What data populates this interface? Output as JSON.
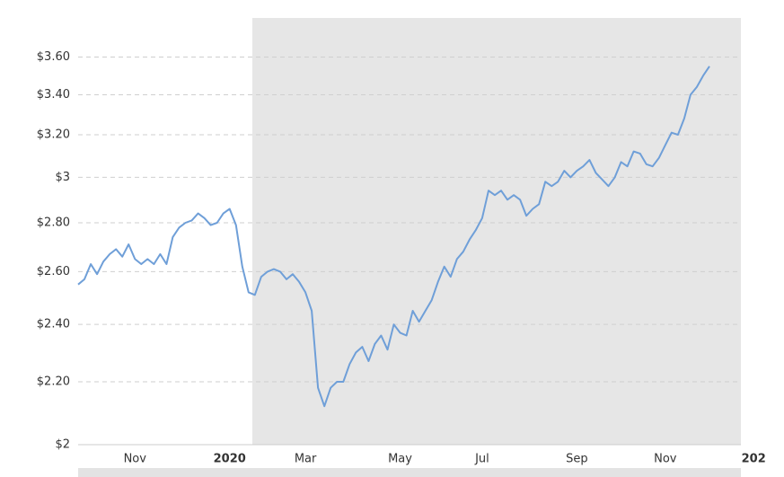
{
  "chart_data": {
    "type": "line",
    "log_scale": true,
    "grid": true,
    "categories": [
      null,
      null,
      null,
      null,
      null,
      null,
      null,
      null,
      null,
      "Nov",
      null,
      null,
      null,
      null,
      null,
      null,
      null,
      null,
      null,
      null,
      null,
      null,
      null,
      null,
      "2020",
      null,
      null,
      null,
      null,
      null,
      null,
      null,
      null,
      null,
      null,
      null,
      "Mar",
      null,
      null,
      null,
      null,
      null,
      null,
      null,
      null,
      null,
      null,
      null,
      null,
      null,
      null,
      "May",
      null,
      null,
      null,
      null,
      null,
      null,
      null,
      null,
      null,
      null,
      null,
      null,
      "Jul",
      null,
      null,
      null,
      null,
      null,
      null,
      null,
      null,
      null,
      null,
      null,
      null,
      null,
      null,
      "Sep",
      null,
      null,
      null,
      null,
      null,
      null,
      null,
      null,
      null,
      null,
      null,
      null,
      null,
      "Nov",
      null,
      null,
      null,
      null,
      null,
      null,
      null,
      null,
      null,
      null,
      null,
      null,
      null,
      "202"
    ],
    "series": [
      {
        "color": "#6f9fd8",
        "values": [
          2.55,
          2.57,
          2.63,
          2.59,
          2.64,
          2.67,
          2.69,
          2.66,
          2.71,
          2.65,
          2.63,
          2.65,
          2.63,
          2.67,
          2.63,
          2.74,
          2.78,
          2.8,
          2.81,
          2.84,
          2.82,
          2.79,
          2.8,
          2.84,
          2.86,
          2.79,
          2.62,
          2.52,
          2.51,
          2.58,
          2.6,
          2.61,
          2.6,
          2.57,
          2.59,
          2.56,
          2.52,
          2.45,
          2.18,
          2.12,
          2.18,
          2.2,
          2.2,
          2.26,
          2.3,
          2.32,
          2.27,
          2.33,
          2.36,
          2.31,
          2.4,
          2.37,
          2.36,
          2.45,
          2.41,
          2.45,
          2.49,
          2.56,
          2.62,
          2.58,
          2.65,
          2.68,
          2.73,
          2.77,
          2.82,
          2.94,
          2.92,
          2.94,
          2.9,
          2.92,
          2.9,
          2.83,
          2.86,
          2.88,
          2.98,
          2.96,
          2.98,
          3.03,
          3.0,
          3.03,
          3.05,
          3.08,
          3.02,
          2.99,
          2.96,
          3.0,
          3.07,
          3.05,
          3.12,
          3.11,
          3.06,
          3.05,
          3.09,
          3.15,
          3.21,
          3.2,
          3.28,
          3.4,
          3.44,
          3.5,
          3.55,
          null,
          null,
          null,
          null,
          null,
          null,
          null
        ]
      }
    ],
    "shaded_range": [
      27.6,
      105
    ],
    "ylim": [
      2,
      3.82
    ],
    "yticks": [
      {
        "value": 2,
        "label": "$2"
      },
      {
        "value": 2.2,
        "label": "$2.20"
      },
      {
        "value": 2.4,
        "label": "$2.40"
      },
      {
        "value": 2.6,
        "label": "$2.60"
      },
      {
        "value": 2.8,
        "label": "$2.80"
      },
      {
        "value": 3,
        "label": "$3"
      },
      {
        "value": 3.2,
        "label": "$3.20"
      },
      {
        "value": 3.4,
        "label": "$3.40"
      },
      {
        "value": 3.6,
        "label": "$3.60"
      }
    ]
  }
}
